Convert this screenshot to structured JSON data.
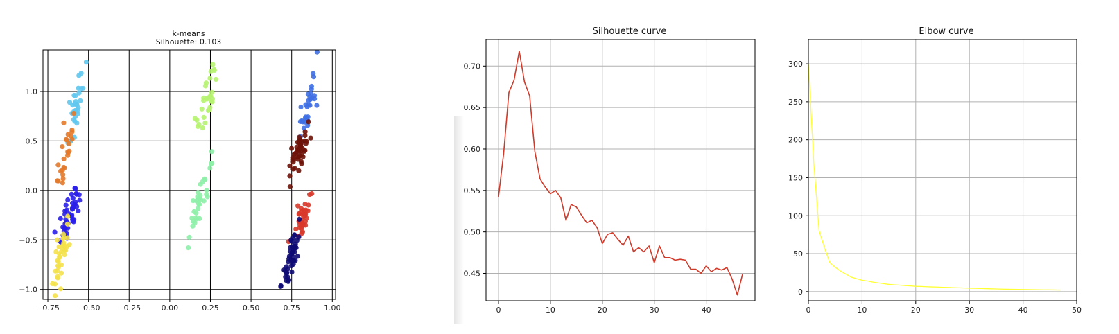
{
  "chart_data": [
    {
      "type": "scatter",
      "title": "k-means",
      "subtitle": "Silhouette: 0.103",
      "xlim": [
        -0.78,
        1.02
      ],
      "ylim": [
        -1.1,
        1.42
      ],
      "xticks": [
        "−0.75",
        "−0.50",
        "−0.25",
        "0.00",
        "0.25",
        "0.50",
        "0.75",
        "1.00"
      ],
      "yticks": [
        "−1.0",
        "−0.5",
        "0.0",
        "0.5",
        "1.0"
      ],
      "grid": true,
      "clusters": [
        {
          "color": "#62c8ee",
          "center": [
            -0.58,
            0.83
          ],
          "spread": [
            0.035,
            0.18
          ],
          "n": 30
        },
        {
          "color": "#e3792a",
          "center": [
            -0.64,
            0.38
          ],
          "spread": [
            0.035,
            0.17
          ],
          "n": 26
        },
        {
          "color": "#2a1fe8",
          "center": [
            -0.62,
            -0.24
          ],
          "spread": [
            0.04,
            0.14
          ],
          "n": 45
        },
        {
          "color": "#f4e14a",
          "center": [
            -0.67,
            -0.66
          ],
          "spread": [
            0.035,
            0.17
          ],
          "n": 38
        },
        {
          "color": "#b6f370",
          "center": [
            0.23,
            0.95
          ],
          "spread": [
            0.045,
            0.2
          ],
          "n": 30
        },
        {
          "color": "#8ef0a8",
          "center": [
            0.18,
            -0.12
          ],
          "spread": [
            0.05,
            0.24
          ],
          "n": 34
        },
        {
          "color": "#3f6fe3",
          "center": [
            0.86,
            0.92
          ],
          "spread": [
            0.04,
            0.18
          ],
          "n": 32
        },
        {
          "color": "#6e1208",
          "center": [
            0.8,
            0.4
          ],
          "spread": [
            0.04,
            0.13
          ],
          "n": 45
        },
        {
          "color": "#d8392a",
          "center": [
            0.81,
            -0.28
          ],
          "spread": [
            0.04,
            0.14
          ],
          "n": 38
        },
        {
          "color": "#0e0a74",
          "center": [
            0.75,
            -0.68
          ],
          "spread": [
            0.035,
            0.17
          ],
          "n": 45
        }
      ]
    },
    {
      "type": "line",
      "title": "Silhouette curve",
      "color": "#d03a2a",
      "x": [
        0,
        1,
        2,
        3,
        4,
        5,
        6,
        7,
        8,
        9,
        10,
        11,
        12,
        13,
        14,
        15,
        16,
        17,
        18,
        19,
        20,
        21,
        22,
        23,
        24,
        25,
        26,
        27,
        28,
        29,
        30,
        31,
        32,
        33,
        34,
        35,
        36,
        37,
        38,
        39,
        40,
        41,
        42,
        43,
        44,
        45,
        46,
        47
      ],
      "values": [
        0.542,
        0.595,
        0.668,
        0.683,
        0.718,
        0.681,
        0.664,
        0.597,
        0.564,
        0.554,
        0.546,
        0.55,
        0.541,
        0.514,
        0.533,
        0.53,
        0.52,
        0.511,
        0.514,
        0.505,
        0.486,
        0.497,
        0.499,
        0.491,
        0.484,
        0.495,
        0.476,
        0.481,
        0.476,
        0.483,
        0.463,
        0.483,
        0.469,
        0.469,
        0.466,
        0.467,
        0.466,
        0.455,
        0.455,
        0.45,
        0.459,
        0.452,
        0.456,
        0.454,
        0.457,
        0.443,
        0.424,
        0.449
      ],
      "xlim": [
        -2.4,
        49.4
      ],
      "ylim": [
        0.417,
        0.732
      ],
      "xticks": [
        0,
        10,
        20,
        30,
        40
      ],
      "yticks": [
        "0.45",
        "0.50",
        "0.55",
        "0.60",
        "0.65",
        "0.70"
      ],
      "grid": true
    },
    {
      "type": "line",
      "title": "Elbow curve",
      "color": "#ffff33",
      "x": [
        0,
        1,
        2,
        3,
        4,
        5,
        6,
        7,
        8,
        9,
        10,
        11,
        12,
        13,
        14,
        15,
        16,
        17,
        18,
        19,
        20,
        21,
        22,
        23,
        24,
        25,
        26,
        27,
        28,
        29,
        30,
        31,
        32,
        33,
        34,
        35,
        36,
        37,
        38,
        39,
        40,
        41,
        42,
        43,
        44,
        45,
        46,
        47
      ],
      "values": [
        300,
        170,
        80,
        58,
        38,
        32,
        27,
        23,
        19,
        17,
        15,
        14,
        12.5,
        11.5,
        10.5,
        9.5,
        9,
        8.5,
        8,
        7.5,
        7,
        6.8,
        6.5,
        6.2,
        6,
        5.7,
        5.5,
        5.2,
        5,
        4.8,
        4.5,
        4.3,
        4.1,
        3.9,
        3.7,
        3.5,
        3.3,
        3.1,
        3,
        2.9,
        2.8,
        2.7,
        2.6,
        2.5,
        2.4,
        2.3,
        2.2,
        2.1
      ],
      "xlim": [
        0,
        50
      ],
      "ylim": [
        -12,
        332
      ],
      "xticks": [
        0,
        10,
        20,
        30,
        40,
        50
      ],
      "yticks": [
        "0",
        "50",
        "100",
        "150",
        "200",
        "250",
        "300"
      ],
      "grid": true
    }
  ]
}
